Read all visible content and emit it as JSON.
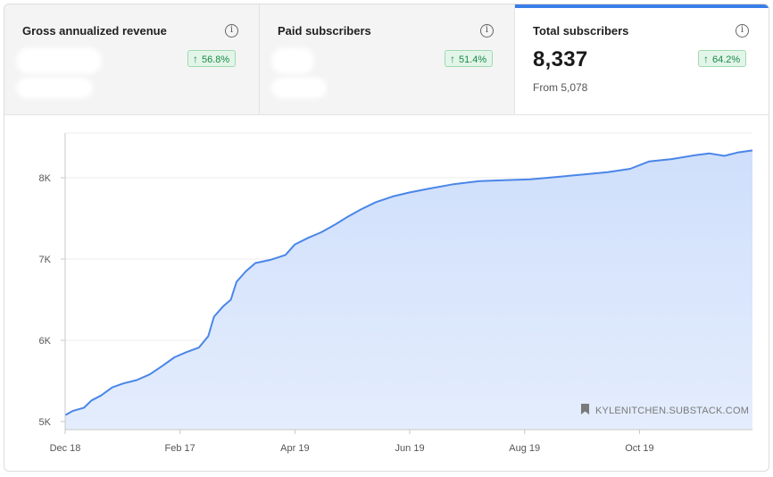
{
  "tabs": [
    {
      "title": "Gross annualized revenue",
      "change": "56.8%",
      "value": "",
      "from": ""
    },
    {
      "title": "Paid subscribers",
      "change": "51.4%",
      "value": "",
      "from": ""
    },
    {
      "title": "Total subscribers",
      "change": "64.2%",
      "value": "8,337",
      "from": "From 5,078"
    }
  ],
  "info_icon_glyph": "i",
  "up_arrow_glyph": "↑",
  "watermark": "KYLENITCHEN.SUBSTACK.COM",
  "colors": {
    "accent": "#3a7ee8",
    "line": "#4a86e8",
    "area": "#d6e4fb",
    "badge_text": "#188a47",
    "badge_bg": "#e3f5e9"
  },
  "chart_data": {
    "type": "area",
    "ylim": [
      4900,
      8550
    ],
    "y_ticks": [
      {
        "label": "5K",
        "value": 5000
      },
      {
        "label": "6K",
        "value": 6000
      },
      {
        "label": "7K",
        "value": 7000
      },
      {
        "label": "8K",
        "value": 8000
      }
    ],
    "x_ticks": [
      {
        "label": "Dec 18",
        "date": "2018-12-18"
      },
      {
        "label": "Feb 17",
        "date": "2019-02-17"
      },
      {
        "label": "Apr 19",
        "date": "2019-04-19"
      },
      {
        "label": "Jun 19",
        "date": "2019-06-19"
      },
      {
        "label": "Aug 19",
        "date": "2019-08-19"
      },
      {
        "label": "Oct 19",
        "date": "2019-10-19"
      }
    ],
    "x_end_date": "2019-12-18",
    "series": [
      {
        "points": [
          [
            "2018-12-18",
            5078
          ],
          [
            "2018-12-22",
            5130
          ],
          [
            "2018-12-28",
            5170
          ],
          [
            "2019-01-01",
            5260
          ],
          [
            "2019-01-06",
            5320
          ],
          [
            "2019-01-12",
            5420
          ],
          [
            "2019-01-18",
            5470
          ],
          [
            "2019-01-25",
            5510
          ],
          [
            "2019-02-01",
            5580
          ],
          [
            "2019-02-08",
            5690
          ],
          [
            "2019-02-14",
            5790
          ],
          [
            "2019-02-20",
            5850
          ],
          [
            "2019-02-27",
            5910
          ],
          [
            "2019-03-04",
            6050
          ],
          [
            "2019-03-07",
            6290
          ],
          [
            "2019-03-12",
            6420
          ],
          [
            "2019-03-16",
            6500
          ],
          [
            "2019-03-19",
            6720
          ],
          [
            "2019-03-24",
            6850
          ],
          [
            "2019-03-29",
            6950
          ],
          [
            "2019-04-06",
            6990
          ],
          [
            "2019-04-14",
            7050
          ],
          [
            "2019-04-19",
            7180
          ],
          [
            "2019-04-26",
            7260
          ],
          [
            "2019-05-03",
            7330
          ],
          [
            "2019-05-10",
            7420
          ],
          [
            "2019-05-17",
            7520
          ],
          [
            "2019-05-24",
            7610
          ],
          [
            "2019-06-01",
            7700
          ],
          [
            "2019-06-10",
            7770
          ],
          [
            "2019-06-19",
            7820
          ],
          [
            "2019-06-30",
            7870
          ],
          [
            "2019-07-12",
            7920
          ],
          [
            "2019-07-26",
            7960
          ],
          [
            "2019-08-08",
            7970
          ],
          [
            "2019-08-22",
            7980
          ],
          [
            "2019-09-05",
            8010
          ],
          [
            "2019-09-19",
            8040
          ],
          [
            "2019-10-02",
            8070
          ],
          [
            "2019-10-14",
            8110
          ],
          [
            "2019-10-24",
            8200
          ],
          [
            "2019-11-05",
            8230
          ],
          [
            "2019-11-18",
            8280
          ],
          [
            "2019-11-25",
            8300
          ],
          [
            "2019-12-03",
            8270
          ],
          [
            "2019-12-10",
            8310
          ],
          [
            "2019-12-18",
            8337
          ]
        ]
      }
    ]
  }
}
